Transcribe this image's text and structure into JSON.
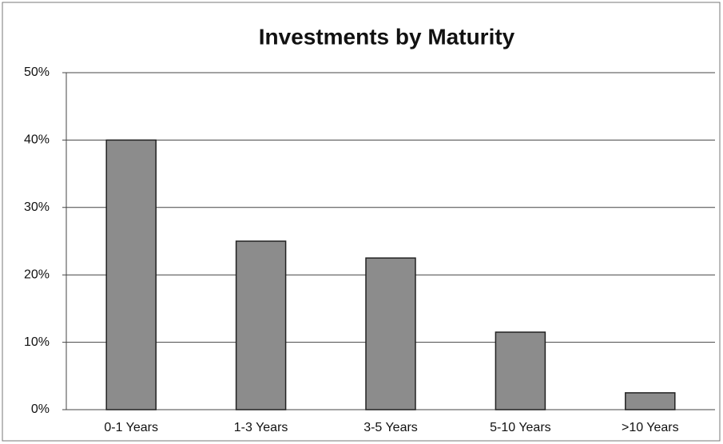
{
  "chart_data": {
    "type": "bar",
    "title": "Investments by Maturity",
    "categories": [
      "0-1 Years",
      "1-3 Years",
      "3-5 Years",
      "5-10 Years",
      ">10 Years"
    ],
    "values": [
      40,
      25,
      22.5,
      11.5,
      2.5
    ],
    "color": "#8c8c8c",
    "ylim": [
      0,
      50
    ],
    "yticks": [
      {
        "value": 0,
        "label": "0%"
      },
      {
        "value": 10,
        "label": "10%"
      },
      {
        "value": 20,
        "label": "20%"
      },
      {
        "value": 30,
        "label": "30%"
      },
      {
        "value": 40,
        "label": "40%"
      },
      {
        "value": 50,
        "label": "50%"
      }
    ],
    "grid": true
  }
}
